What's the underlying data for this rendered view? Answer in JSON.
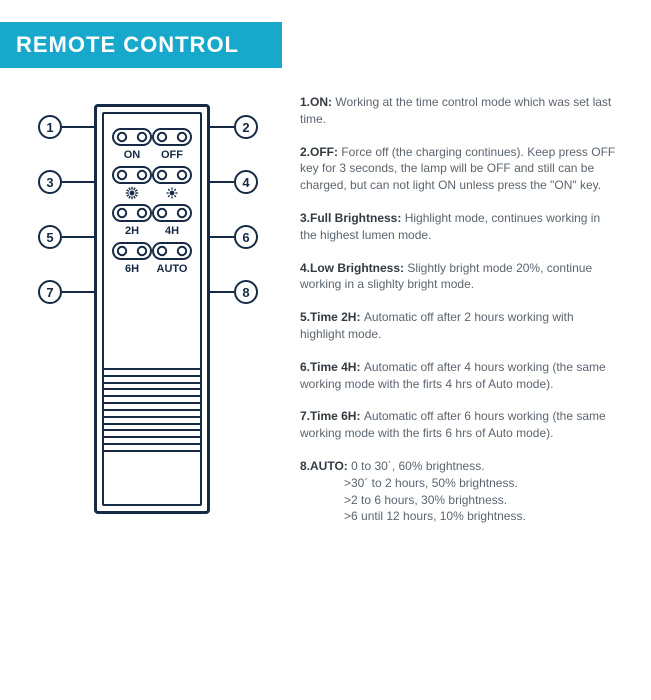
{
  "colors": {
    "header_bg": "#17a8cb",
    "header_text": "#ffffff",
    "line": "#162a45",
    "body_text": "#5c6570",
    "bold_text": "#333a42",
    "background": "#ffffff"
  },
  "header": {
    "title": "REMOTE CONTROL"
  },
  "remote": {
    "buttons": [
      {
        "num": 1,
        "label": "ON",
        "icon": null
      },
      {
        "num": 2,
        "label": "OFF",
        "icon": null
      },
      {
        "num": 3,
        "label": "",
        "icon": "brightness-high"
      },
      {
        "num": 4,
        "label": "",
        "icon": "brightness-low"
      },
      {
        "num": 5,
        "label": "2H",
        "icon": null
      },
      {
        "num": 6,
        "label": "4H",
        "icon": null
      },
      {
        "num": 7,
        "label": "6H",
        "icon": null
      },
      {
        "num": 8,
        "label": "AUTO",
        "icon": null
      }
    ],
    "callout_row_tops": [
      33,
      88,
      143,
      198
    ],
    "grille_lines": 13
  },
  "descriptions": [
    {
      "num": "1",
      "title": "ON",
      "text": "Working at the  time control mode which was set last time."
    },
    {
      "num": "2",
      "title": "OFF",
      "text": "Force off (the charging continues). Keep press OFF key for 3 seconds, the lamp will be OFF and still can be charged, but can not light ON unless press the \"ON\" key."
    },
    {
      "num": "3",
      "title": "Full Brightness",
      "text": "Highlight mode, continues working in the highest lumen mode."
    },
    {
      "num": "4",
      "title": "Low Brightness",
      "text": "Slightly bright mode 20%, continue working in a slighlty bright mode."
    },
    {
      "num": "5",
      "title": "Time 2H",
      "text": "Automatic off after 2 hours working with highlight mode."
    },
    {
      "num": "6",
      "title": "Time 4H",
      "text": "Automatic off after 4 hours working (the same working mode with the firts 4 hrs of Auto mode)."
    },
    {
      "num": "7",
      "title": "Time 6H",
      "text": "Automatic off after 6 hours working (the same working mode with the firts 6 hrs of Auto mode)."
    },
    {
      "num": "8",
      "title": "AUTO",
      "text": "0 to 30´, 60% brightness.",
      "sub": [
        ">30´ to 2 hours, 50% brightness.",
        ">2 to 6 hours, 30% brightness.",
        ">6 until 12 hours, 10% brightness."
      ]
    }
  ]
}
